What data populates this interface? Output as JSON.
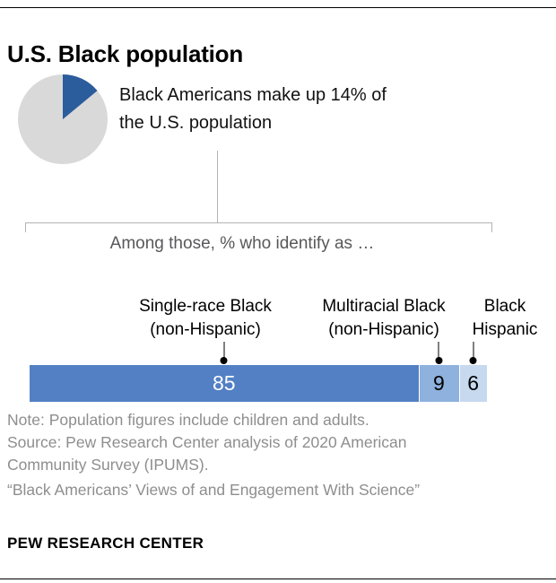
{
  "header": {
    "title": "U.S. Black population"
  },
  "overview": {
    "pie": {
      "percent": 14,
      "slice_color": "#2b5c9c",
      "rest_color": "#d9d9d9"
    },
    "text_line1": "Black Americans make up 14% of",
    "text_line2": "the U.S. population"
  },
  "subtitle": "Among those, % who identify as …",
  "chart_data": {
    "type": "bar",
    "stacked": true,
    "orientation": "horizontal",
    "title": "U.S. Black population",
    "subtitle": "Among those, % who identify as …",
    "context_note": "Black Americans make up 14% of the U.S. population",
    "categories": [
      "Single-race Black (non-Hispanic)",
      "Multiracial Black (non-Hispanic)",
      "Black Hispanic"
    ],
    "values": [
      85,
      9,
      6
    ],
    "unit": "%",
    "xlim": [
      0,
      100
    ],
    "grid": false,
    "legend": "none",
    "colors": [
      "#5380c4",
      "#8eb1dd",
      "#c7d9ef"
    ],
    "value_label_colors": [
      "#ffffff",
      "#000000",
      "#000000"
    ]
  },
  "labels": [
    {
      "line1": "Single-race Black",
      "line2": "(non-Hispanic)"
    },
    {
      "line1": "Multiracial Black",
      "line2": "(non-Hispanic)"
    },
    {
      "line1": "Black",
      "line2": "Hispanic"
    }
  ],
  "notes": {
    "line1": "Note: Population figures include children and adults.",
    "line2": "Source: Pew Research Center analysis of 2020 American",
    "line3": "Community Survey (IPUMS).",
    "line4": "“Black Americans’ Views of and Engagement With Science”"
  },
  "footer": {
    "brand": "PEW RESEARCH CENTER"
  }
}
